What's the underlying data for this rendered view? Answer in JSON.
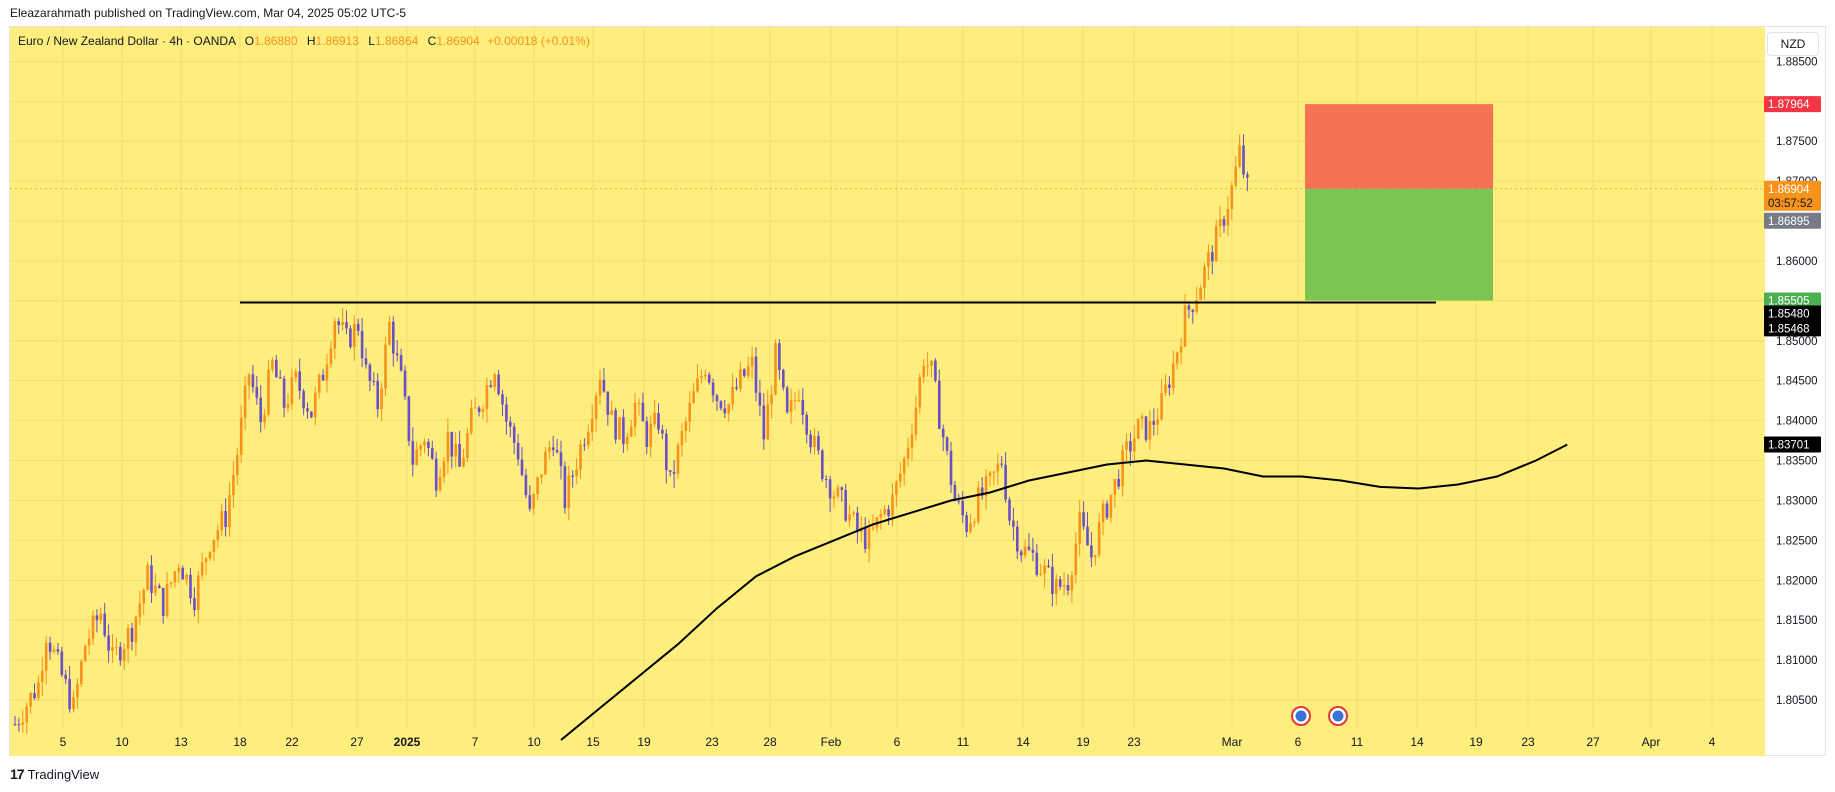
{
  "header": {
    "text": "Eleazarahmath published on TradingView.com, Mar 04, 2025 05:02 UTC-5"
  },
  "legend": {
    "symbol": "Euro / New Zealand Dollar · 4h · OANDA",
    "o_label": "O",
    "o_value": "1.86880",
    "h_label": "H",
    "h_value": "1.86913",
    "l_label": "L",
    "l_value": "1.86864",
    "c_label": "C",
    "c_value": "1.86904",
    "change": "+0.00018 (+0.01%)"
  },
  "currency_button": "NZD",
  "footer": {
    "brand": "TradingView",
    "logo": "17"
  },
  "colors": {
    "background": "#fdee7e",
    "up_candle": "#f7931a",
    "down_candle": "#6b4fc6",
    "stop_zone": "#f4654f",
    "target_zone": "#6fbf4f",
    "line": "#000000"
  },
  "chart_data": {
    "type": "candlestick",
    "ylim": [
      1.8015,
      1.8893
    ],
    "y_ticks": [
      "1.88500",
      "1.88000",
      "1.87500",
      "1.87000",
      "1.86500",
      "1.86000",
      "1.85500",
      "1.85000",
      "1.84500",
      "1.84000",
      "1.83500",
      "1.83000",
      "1.82500",
      "1.82000",
      "1.81500",
      "1.81000",
      "1.80500"
    ],
    "x_ticks": [
      "5",
      "10",
      "13",
      "18",
      "22",
      "27",
      "2025",
      "7",
      "10",
      "15",
      "19",
      "23",
      "28",
      "Feb",
      "6",
      "11",
      "14",
      "19",
      "23",
      "Mar",
      "6",
      "11",
      "14",
      "19",
      "23",
      "27",
      "Apr",
      "4"
    ],
    "price_labels": [
      {
        "value": "1.87964",
        "color": "#f23645"
      },
      {
        "value": "1.86904",
        "sub": "03:57:52",
        "color": "#f7931a"
      },
      {
        "value": "1.86895",
        "color": "#787b86"
      },
      {
        "value": "1.85505",
        "color": "#4caf50"
      },
      {
        "value": "1.85480",
        "color": "#000000"
      },
      {
        "value": "1.85468",
        "color": "#000000"
      },
      {
        "value": "1.83701",
        "color": "#000000"
      }
    ],
    "path_points": [
      [
        0,
        1.802
      ],
      [
        6,
        1.807
      ],
      [
        8,
        1.8135
      ],
      [
        12,
        1.808
      ],
      [
        15,
        1.804
      ],
      [
        18,
        1.812
      ],
      [
        22,
        1.816
      ],
      [
        25,
        1.81
      ],
      [
        30,
        1.814
      ],
      [
        34,
        1.8205
      ],
      [
        38,
        1.817
      ],
      [
        42,
        1.8225
      ],
      [
        46,
        1.818
      ],
      [
        50,
        1.825
      ],
      [
        54,
        1.828
      ],
      [
        57,
        1.836
      ],
      [
        60,
        1.846
      ],
      [
        63,
        1.84
      ],
      [
        66,
        1.847
      ],
      [
        69,
        1.842
      ],
      [
        72,
        1.845
      ],
      [
        76,
        1.841
      ],
      [
        79,
        1.846
      ],
      [
        82,
        1.853
      ],
      [
        85,
        1.85
      ],
      [
        88,
        1.852
      ],
      [
        90,
        1.846
      ],
      [
        93,
        1.842
      ],
      [
        96,
        1.852
      ],
      [
        99,
        1.845
      ],
      [
        102,
        1.835
      ],
      [
        105,
        1.838
      ],
      [
        108,
        1.833
      ],
      [
        111,
        1.838
      ],
      [
        114,
        1.834
      ],
      [
        117,
        1.84
      ],
      [
        120,
        1.843
      ],
      [
        123,
        1.847
      ],
      [
        126,
        1.84
      ],
      [
        129,
        1.836
      ],
      [
        132,
        1.828
      ],
      [
        135,
        1.834
      ],
      [
        138,
        1.838
      ],
      [
        141,
        1.83
      ],
      [
        144,
        1.835
      ],
      [
        147,
        1.84
      ],
      [
        150,
        1.846
      ],
      [
        153,
        1.84
      ],
      [
        156,
        1.838
      ],
      [
        159,
        1.842
      ],
      [
        162,
        1.838
      ],
      [
        165,
        1.84
      ],
      [
        168,
        1.832
      ],
      [
        171,
        1.838
      ],
      [
        174,
        1.843
      ],
      [
        177,
        1.847
      ],
      [
        180,
        1.843
      ],
      [
        183,
        1.842
      ],
      [
        186,
        1.845
      ],
      [
        189,
        1.847
      ],
      [
        192,
        1.838
      ],
      [
        195,
        1.848
      ],
      [
        198,
        1.84
      ],
      [
        201,
        1.844
      ],
      [
        204,
        1.838
      ],
      [
        207,
        1.834
      ],
      [
        210,
        1.831
      ],
      [
        213,
        1.829
      ],
      [
        216,
        1.826
      ],
      [
        219,
        1.825
      ],
      [
        222,
        1.828
      ],
      [
        225,
        1.83
      ],
      [
        228,
        1.835
      ],
      [
        231,
        1.842
      ],
      [
        233,
        1.848
      ],
      [
        235,
        1.846
      ],
      [
        238,
        1.838
      ],
      [
        241,
        1.83
      ],
      [
        244,
        1.827
      ],
      [
        247,
        1.83
      ],
      [
        250,
        1.832
      ],
      [
        253,
        1.835
      ],
      [
        255,
        1.828
      ],
      [
        258,
        1.824
      ],
      [
        261,
        1.823
      ],
      [
        264,
        1.821
      ],
      [
        267,
        1.819
      ],
      [
        270,
        1.82
      ],
      [
        273,
        1.827
      ],
      [
        276,
        1.823
      ],
      [
        279,
        1.828
      ],
      [
        282,
        1.832
      ],
      [
        285,
        1.836
      ],
      [
        288,
        1.839
      ],
      [
        291,
        1.839
      ],
      [
        294,
        1.842
      ],
      [
        297,
        1.847
      ],
      [
        300,
        1.853
      ],
      [
        303,
        1.856
      ],
      [
        306,
        1.86
      ],
      [
        309,
        1.864
      ],
      [
        312,
        1.869
      ],
      [
        314,
        1.8735
      ],
      [
        316,
        1.869
      ]
    ],
    "candle_x_range": {
      "first_day": "Dec 03",
      "candle_count": 317
    },
    "moving_average": [
      [
        140,
        1.8
      ],
      [
        150,
        1.804
      ],
      [
        160,
        1.808
      ],
      [
        170,
        1.812
      ],
      [
        180,
        1.8165
      ],
      [
        190,
        1.8205
      ],
      [
        200,
        1.823
      ],
      [
        210,
        1.825
      ],
      [
        220,
        1.827
      ],
      [
        230,
        1.8285
      ],
      [
        240,
        1.83
      ],
      [
        250,
        1.831
      ],
      [
        260,
        1.8325
      ],
      [
        270,
        1.8335
      ],
      [
        280,
        1.8345
      ],
      [
        290,
        1.835
      ],
      [
        300,
        1.8345
      ],
      [
        310,
        1.834
      ],
      [
        320,
        1.833
      ],
      [
        330,
        1.833
      ],
      [
        340,
        1.8325
      ],
      [
        350,
        1.8317
      ],
      [
        360,
        1.8315
      ],
      [
        370,
        1.832
      ],
      [
        380,
        1.833
      ],
      [
        390,
        1.835
      ],
      [
        398,
        1.837
      ]
    ],
    "resistance_line": {
      "y": 1.8548
    },
    "position": {
      "entry": 1.86904,
      "stop": 1.87964,
      "target": 1.85505
    }
  }
}
